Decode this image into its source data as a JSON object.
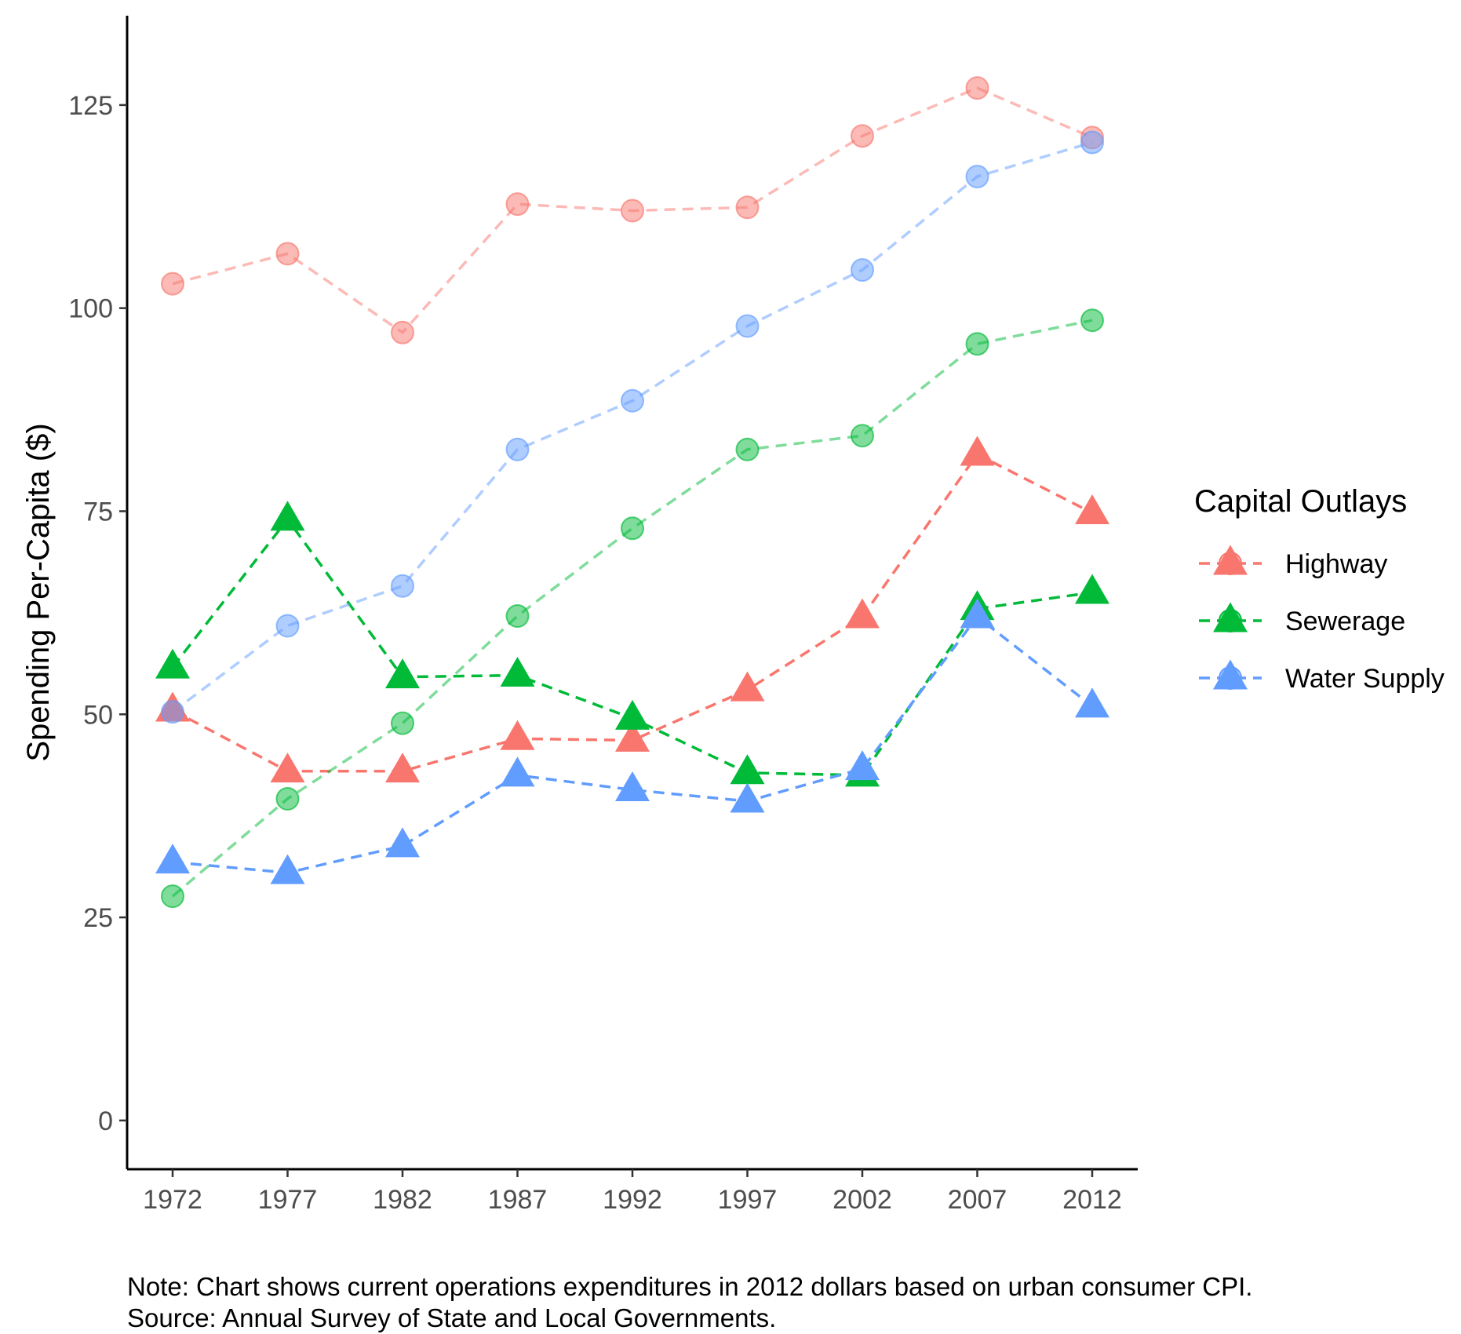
{
  "chart_data": {
    "type": "line",
    "title": "",
    "xlabel": "",
    "ylabel": "Spending Per-Capita ($)",
    "x": [
      1972,
      1977,
      1982,
      1987,
      1992,
      1997,
      2002,
      2007,
      2012
    ],
    "ylim": [
      -6,
      136
    ],
    "yticks": [
      0,
      25,
      50,
      75,
      100,
      125
    ],
    "grid": false,
    "legend": {
      "title": "Capital Outlays",
      "placement": "right",
      "entries": [
        "Highway",
        "Sewerage",
        "Water Supply"
      ]
    },
    "series": [
      {
        "name": "Highway",
        "group": "Capital Outlays",
        "marker": "triangle",
        "color": "#F8766D",
        "opacity": 1.0,
        "values": [
          50.5,
          43.0,
          43.0,
          47.0,
          46.8,
          53.0,
          62.0,
          82.0,
          74.8
        ]
      },
      {
        "name": "Sewerage",
        "group": "Capital Outlays",
        "marker": "triangle",
        "color": "#00BA38",
        "opacity": 1.0,
        "values": [
          55.8,
          74.0,
          54.6,
          54.8,
          49.5,
          42.8,
          42.5,
          63.0,
          65.0
        ]
      },
      {
        "name": "Water Supply",
        "group": "Capital Outlays",
        "marker": "triangle",
        "color": "#619CFF",
        "opacity": 1.0,
        "values": [
          31.8,
          30.5,
          33.8,
          42.5,
          40.7,
          39.3,
          43.3,
          62.0,
          51.0
        ]
      },
      {
        "name": "Highway",
        "group": "Current Operations",
        "marker": "circle",
        "color": "#F8766D",
        "opacity": 0.5,
        "values": [
          103.0,
          106.7,
          97.0,
          112.8,
          112.0,
          112.4,
          121.2,
          127.1,
          121.0
        ]
      },
      {
        "name": "Sewerage",
        "group": "Current Operations",
        "marker": "circle",
        "color": "#00BA38",
        "opacity": 0.5,
        "values": [
          27.6,
          39.6,
          48.9,
          62.1,
          72.9,
          82.6,
          84.3,
          95.6,
          98.5
        ]
      },
      {
        "name": "Water Supply",
        "group": "Current Operations",
        "marker": "circle",
        "color": "#619CFF",
        "opacity": 0.5,
        "values": [
          50.3,
          60.9,
          65.8,
          82.6,
          88.6,
          97.8,
          104.7,
          116.2,
          120.4
        ]
      }
    ]
  },
  "caption": {
    "note": "Note: Chart shows current operations expenditures in 2012 dollars based on urban consumer CPI.",
    "source": "Source: Annual Survey of State and Local Governments."
  }
}
